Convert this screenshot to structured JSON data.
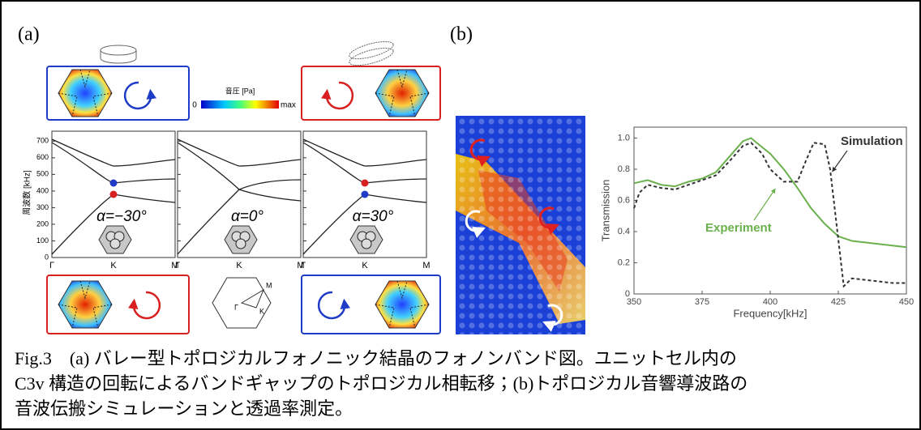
{
  "panel_a": {
    "label": "(a)",
    "colorbar": {
      "title": "音圧 [Pa]",
      "min_label": "0",
      "max_label": "max"
    },
    "band_axis": {
      "ylabel": "周波数 [kHz]",
      "ylim": [
        0,
        760
      ],
      "yticks": [
        0,
        100,
        200,
        300,
        400,
        500,
        600,
        700
      ]
    },
    "band_panels": [
      {
        "alpha_label": "α=−30°",
        "k_labels": [
          "Γ",
          "K",
          "M"
        ]
      },
      {
        "alpha_label": "α=0°",
        "k_labels": [
          "Γ",
          "K",
          "M"
        ]
      },
      {
        "alpha_label": "α=30°",
        "k_labels": [
          "Γ",
          "K",
          "M"
        ]
      }
    ],
    "brillouin_labels": [
      "M",
      "Γ",
      "K"
    ]
  },
  "panel_b": {
    "label": "(b)",
    "chart_data": {
      "type": "line",
      "xlabel": "Frequency[kHz]",
      "ylabel": "Transmission",
      "xlim": [
        350,
        450
      ],
      "xticks": [
        350,
        375,
        400,
        425,
        450
      ],
      "ylim": [
        0,
        1.07
      ],
      "yticks": [
        0,
        0.2,
        0.4,
        0.6,
        0.8,
        {
          "value": 1,
          "label": "1.0"
        }
      ],
      "series": [
        {
          "name": "Experiment",
          "color": "#6ab04c",
          "x": [
            350,
            355,
            360,
            365,
            370,
            375,
            380,
            385,
            390,
            393,
            395,
            400,
            405,
            410,
            415,
            420,
            425,
            430,
            440,
            450
          ],
          "values": [
            0.71,
            0.73,
            0.7,
            0.69,
            0.72,
            0.74,
            0.78,
            0.88,
            0.98,
            1.0,
            0.97,
            0.9,
            0.8,
            0.68,
            0.55,
            0.45,
            0.37,
            0.34,
            0.32,
            0.3
          ]
        },
        {
          "name": "Simulation",
          "color": "#333333",
          "x": [
            350,
            352,
            355,
            360,
            365,
            370,
            375,
            380,
            385,
            390,
            393,
            397,
            400,
            405,
            410,
            413,
            416,
            420,
            422,
            425,
            427,
            430,
            435,
            440,
            445,
            450
          ],
          "values": [
            0.55,
            0.65,
            0.7,
            0.68,
            0.67,
            0.7,
            0.73,
            0.76,
            0.85,
            0.95,
            0.97,
            0.9,
            0.8,
            0.72,
            0.72,
            0.85,
            0.97,
            0.96,
            0.8,
            0.35,
            0.05,
            0.1,
            0.09,
            0.08,
            0.07,
            0.07
          ]
        }
      ]
    }
  },
  "caption": {
    "lines": [
      "Fig.3　(a) バレー型トポロジカルフォノニック結晶のフォノンバンド図。ユニットセル内の",
      "C3v 構造の回転によるバンドギャップのトポロジカル相転移；(b)トポロジカル音響導波路の",
      "音波伝搬シミュレーションと透過率測定。"
    ]
  }
}
